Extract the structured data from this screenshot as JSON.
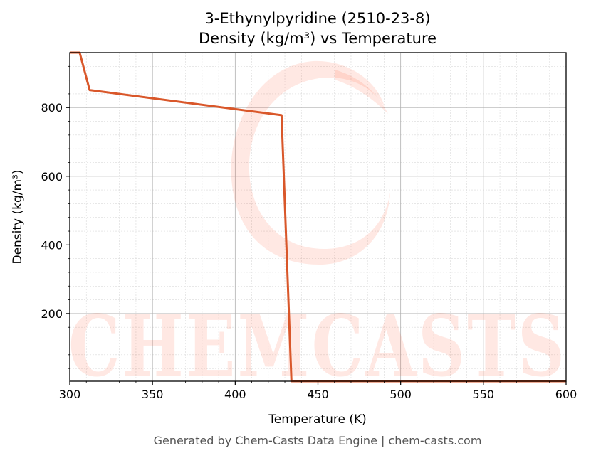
{
  "page": {
    "footer": "Generated by Chem-Casts Data Engine | chem-casts.com",
    "watermark": "CHEMCASTS"
  },
  "chart_data": {
    "type": "line",
    "title": "3-Ethynylpyridine (2510-23-8)",
    "subtitle": "Density (kg/m³) vs Temperature",
    "xlabel": "Temperature (K)",
    "ylabel": "Density (kg/m³)",
    "xlim": [
      300,
      600
    ],
    "ylim": [
      3,
      960
    ],
    "xticks": [
      300,
      350,
      400,
      450,
      500,
      550,
      600
    ],
    "yticks": [
      200,
      400,
      600,
      800
    ],
    "grid": true,
    "minor_grid": true,
    "line_color": "#d9572a",
    "series": [
      {
        "x": [
          300,
          306,
          312,
          428,
          434,
          600
        ],
        "y": [
          960,
          960,
          851,
          778,
          3,
          3
        ]
      }
    ]
  }
}
